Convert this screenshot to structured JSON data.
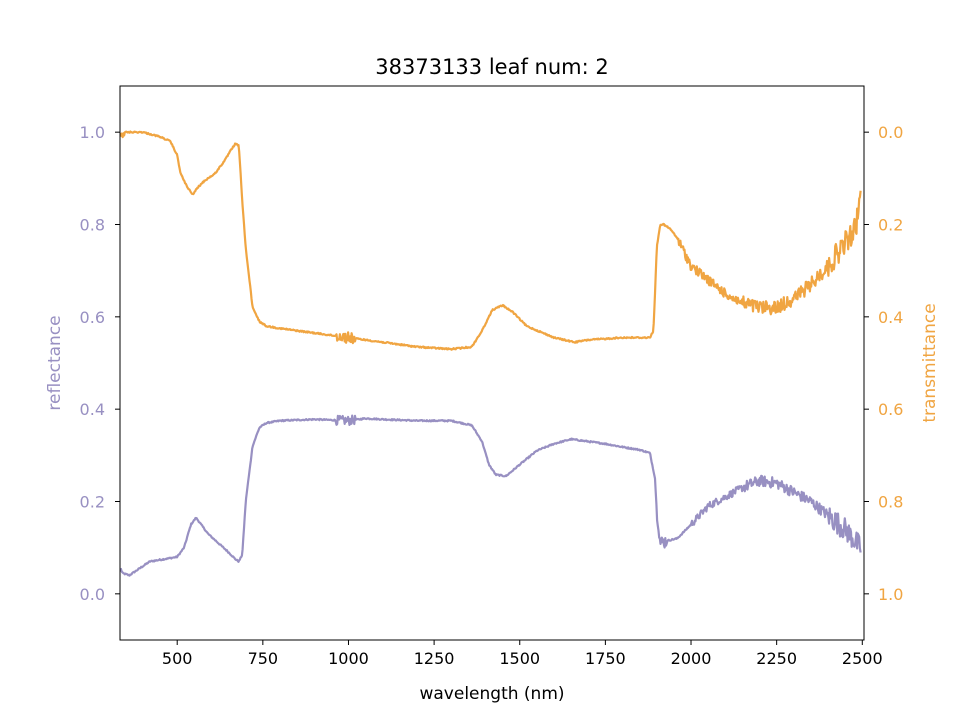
{
  "chart_data": {
    "type": "line",
    "title": "38373133 leaf num: 2",
    "xlabel": "wavelength (nm)",
    "xlim": [
      333,
      2505
    ],
    "xticks": [
      500,
      750,
      1000,
      1250,
      1500,
      1750,
      2000,
      2250,
      2500
    ],
    "left_axis": {
      "label": "reflectance",
      "ylim": [
        -0.1,
        1.1
      ],
      "ticks": [
        0.0,
        0.2,
        0.4,
        0.6,
        0.8,
        1.0
      ],
      "color": "#9890c2"
    },
    "right_axis": {
      "label": "transmittance",
      "ylim": [
        1.1,
        -0.1
      ],
      "inverted": true,
      "ticks": [
        0.0,
        0.2,
        0.4,
        0.6,
        0.8,
        1.0
      ],
      "color": "#f0a542"
    },
    "grid": false,
    "series": [
      {
        "axis": "left",
        "color": "#9890c2",
        "noise_regions": [
          [
            960,
            1020,
            0.01
          ],
          [
            1900,
            1930,
            0.015
          ],
          [
            2000,
            2150,
            0.008
          ],
          [
            2150,
            2400,
            0.012
          ],
          [
            2400,
            2500,
            0.025
          ]
        ],
        "x": [
          335,
          340,
          360,
          380,
          420,
          460,
          500,
          520,
          540,
          555,
          570,
          590,
          620,
          650,
          670,
          680,
          690,
          700,
          720,
          740,
          760,
          800,
          900,
          1000,
          1050,
          1100,
          1200,
          1300,
          1360,
          1390,
          1410,
          1430,
          1460,
          1500,
          1550,
          1600,
          1650,
          1700,
          1750,
          1800,
          1850,
          1880,
          1895,
          1900,
          1905,
          1910,
          1930,
          1960,
          2000,
          2050,
          2100,
          2150,
          2200,
          2250,
          2300,
          2350,
          2400,
          2450,
          2495
        ],
        "y": [
          0.055,
          0.045,
          0.04,
          0.05,
          0.07,
          0.075,
          0.08,
          0.1,
          0.15,
          0.165,
          0.15,
          0.13,
          0.11,
          0.09,
          0.075,
          0.07,
          0.085,
          0.2,
          0.32,
          0.36,
          0.37,
          0.375,
          0.378,
          0.375,
          0.38,
          0.378,
          0.375,
          0.375,
          0.365,
          0.33,
          0.28,
          0.258,
          0.255,
          0.28,
          0.31,
          0.325,
          0.335,
          0.33,
          0.325,
          0.318,
          0.312,
          0.305,
          0.25,
          0.18,
          0.15,
          0.11,
          0.115,
          0.12,
          0.15,
          0.19,
          0.21,
          0.23,
          0.245,
          0.24,
          0.22,
          0.2,
          0.17,
          0.14,
          0.1
        ]
      },
      {
        "axis": "right",
        "color": "#f0a542",
        "noise_regions": [
          [
            335,
            345,
            0.01
          ],
          [
            960,
            1020,
            0.012
          ],
          [
            1960,
            2150,
            0.01
          ],
          [
            2150,
            2400,
            0.015
          ],
          [
            2400,
            2500,
            0.025
          ]
        ],
        "x": [
          335,
          350,
          400,
          450,
          480,
          500,
          510,
          530,
          545,
          560,
          580,
          610,
          640,
          660,
          670,
          680,
          690,
          700,
          720,
          740,
          760,
          800,
          900,
          1000,
          1100,
          1200,
          1300,
          1360,
          1390,
          1420,
          1450,
          1480,
          1520,
          1600,
          1660,
          1700,
          1800,
          1880,
          1890,
          1895,
          1900,
          1910,
          1920,
          1940,
          1960,
          1980,
          2000,
          2050,
          2100,
          2150,
          2200,
          2250,
          2300,
          2350,
          2400,
          2450,
          2480,
          2495
        ],
        "y": [
          0.005,
          0.0,
          0.0,
          0.01,
          0.02,
          0.05,
          0.09,
          0.12,
          0.135,
          0.12,
          0.105,
          0.09,
          0.06,
          0.035,
          0.025,
          0.03,
          0.15,
          0.25,
          0.38,
          0.41,
          0.42,
          0.425,
          0.435,
          0.445,
          0.455,
          0.465,
          0.47,
          0.465,
          0.43,
          0.385,
          0.375,
          0.39,
          0.42,
          0.445,
          0.455,
          0.45,
          0.445,
          0.445,
          0.43,
          0.35,
          0.25,
          0.2,
          0.2,
          0.21,
          0.23,
          0.26,
          0.29,
          0.32,
          0.35,
          0.37,
          0.38,
          0.38,
          0.36,
          0.33,
          0.29,
          0.24,
          0.21,
          0.14
        ]
      }
    ]
  }
}
